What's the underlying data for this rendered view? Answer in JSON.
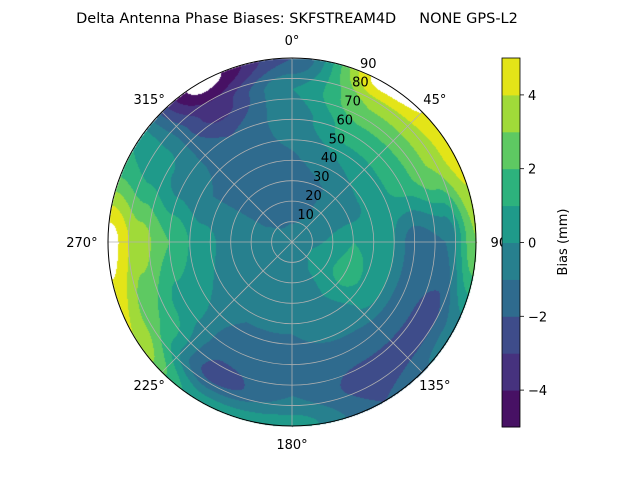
{
  "chart_data": {
    "type": "heatmap",
    "subtype": "polar-filled-contour",
    "title": "Delta Antenna Phase Biases: SKFSTREAM4D     NONE GPS-L2",
    "colorbar_label": "Bias (mm)",
    "colormap": "viridis",
    "levels": [
      -5,
      -4,
      -3,
      -2,
      -1,
      0,
      1,
      2,
      3,
      4,
      5
    ],
    "level_colors": [
      "#471164",
      "#46327e",
      "#3e4c8a",
      "#2f6b8e",
      "#27808e",
      "#1f9a8a",
      "#2db27d",
      "#5ec962",
      "#a0da39",
      "#e3e418"
    ],
    "colorbar_ticks": [
      -4,
      -2,
      0,
      2,
      4
    ],
    "colorbar_tick_labels": [
      "−4",
      "−2",
      "0",
      "2",
      "4"
    ],
    "theta_direction": "clockwise",
    "theta_zero": "north",
    "theta_tick_labels": [
      "0°",
      "45°",
      "90°",
      "135°",
      "180°",
      "225°",
      "270°",
      "315°"
    ],
    "theta_ticks": [
      0,
      45,
      90,
      135,
      180,
      225,
      270,
      315
    ],
    "r_ticks": [
      10,
      20,
      30,
      40,
      50,
      60,
      70,
      80,
      90
    ],
    "r_tick_labels": [
      "10",
      "20",
      "30",
      "40",
      "50",
      "60",
      "70",
      "80",
      "90"
    ],
    "r_range": [
      0,
      90
    ],
    "grid": true,
    "azimuth": [
      0,
      30,
      60,
      90,
      120,
      150,
      180,
      210,
      240,
      270,
      300,
      330
    ],
    "zenith": [
      0,
      15,
      30,
      45,
      60,
      75,
      90
    ],
    "bias_mm": [
      [
        -0.6,
        -1.2,
        -1.5,
        -1.0,
        -0.5,
        0.0,
        -2.0
      ],
      [
        -0.6,
        -1.0,
        -1.0,
        0.0,
        1.5,
        3.0,
        5.5
      ],
      [
        -0.6,
        -0.5,
        -0.5,
        0.5,
        1.5,
        3.0,
        4.5
      ],
      [
        -0.6,
        0.0,
        1.0,
        0.5,
        -1.5,
        -1.0,
        3.0
      ],
      [
        -0.6,
        0.3,
        1.5,
        0.5,
        -1.5,
        -2.5,
        -0.5
      ],
      [
        -0.6,
        0.0,
        0.0,
        -0.5,
        -1.5,
        -2.5,
        -2.0
      ],
      [
        -0.6,
        -0.3,
        -0.5,
        -1.0,
        -1.5,
        -1.0,
        0.5
      ],
      [
        -0.6,
        -0.5,
        -0.5,
        -1.0,
        -1.5,
        -2.5,
        0.5
      ],
      [
        -0.6,
        -0.5,
        -0.5,
        0.0,
        0.5,
        2.0,
        4.0
      ],
      [
        -0.6,
        -0.5,
        -0.5,
        0.5,
        2.0,
        3.5,
        5.5
      ],
      [
        -0.6,
        -1.0,
        -1.0,
        -1.0,
        -0.5,
        0.5,
        1.0
      ],
      [
        -0.6,
        -1.3,
        -1.5,
        -1.5,
        -2.0,
        -3.5,
        -5.5
      ]
    ]
  }
}
